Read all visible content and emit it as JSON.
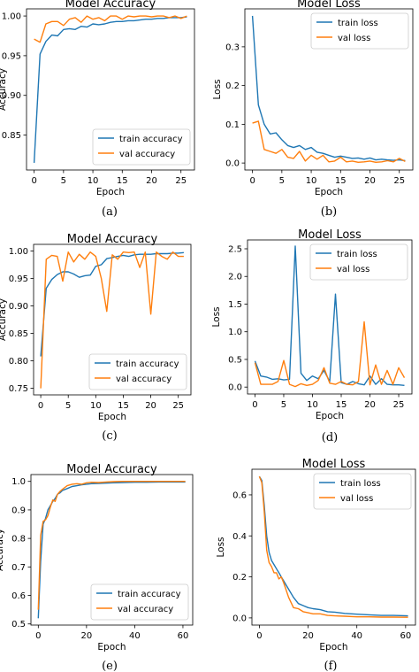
{
  "colors": {
    "train": "#1f77b4",
    "val": "#ff7f0e",
    "axis": "#000000",
    "legend_border": "#cccccc"
  },
  "chart_data": [
    {
      "id": "a",
      "type": "line",
      "caption": "(a)",
      "title": "Model Accuracy",
      "xlabel": "Epoch",
      "ylabel": "Accuracy",
      "xlim": [
        -1.3,
        27.3
      ],
      "ylim": [
        0.806,
        1.009
      ],
      "xticks": [
        0,
        5,
        10,
        15,
        20,
        25
      ],
      "xtick_labels": [
        "0",
        "5",
        "10",
        "15",
        "20",
        "25"
      ],
      "yticks": [
        0.85,
        0.9,
        0.95,
        1.0
      ],
      "ytick_labels": [
        "0.85",
        "0.90",
        "0.95",
        "1.00"
      ],
      "legend": "bottom-right",
      "grid": false,
      "series": [
        {
          "name": "train accuracy",
          "key": "train",
          "x": [
            0,
            1,
            2,
            3,
            4,
            5,
            6,
            7,
            8,
            9,
            10,
            11,
            12,
            13,
            14,
            15,
            16,
            17,
            18,
            19,
            20,
            21,
            22,
            23,
            24,
            25,
            26
          ],
          "y": [
            0.815,
            0.952,
            0.968,
            0.976,
            0.975,
            0.983,
            0.984,
            0.983,
            0.987,
            0.986,
            0.99,
            0.989,
            0.99,
            0.992,
            0.993,
            0.993,
            0.994,
            0.994,
            0.995,
            0.996,
            0.996,
            0.997,
            0.997,
            0.998,
            0.998,
            0.998,
            0.999
          ]
        },
        {
          "name": "val accuracy",
          "key": "val",
          "x": [
            0,
            1,
            2,
            3,
            4,
            5,
            6,
            7,
            8,
            9,
            10,
            11,
            12,
            13,
            14,
            15,
            16,
            17,
            18,
            19,
            20,
            21,
            22,
            23,
            24,
            25,
            26
          ],
          "y": [
            0.971,
            0.967,
            0.99,
            0.993,
            0.993,
            0.988,
            0.996,
            0.998,
            0.992,
            1.0,
            0.996,
            0.998,
            0.994,
            1.0,
            1.0,
            0.996,
            1.0,
            0.999,
            1.0,
            1.0,
            0.999,
            1.0,
            1.0,
            0.998,
            1.0,
            0.997,
            1.0
          ]
        }
      ]
    },
    {
      "id": "b",
      "type": "line",
      "caption": "(b)",
      "title": "Model Loss",
      "xlabel": "Epoch",
      "ylabel": "Loss",
      "xlim": [
        -1.3,
        27.3
      ],
      "ylim": [
        -0.018,
        0.398
      ],
      "xticks": [
        0,
        5,
        10,
        15,
        20,
        25
      ],
      "xtick_labels": [
        "0",
        "5",
        "10",
        "15",
        "20",
        "25"
      ],
      "yticks": [
        0.0,
        0.1,
        0.2,
        0.3
      ],
      "ytick_labels": [
        "0.0",
        "0.1",
        "0.2",
        "0.3"
      ],
      "legend": "top-right",
      "grid": false,
      "series": [
        {
          "name": "train loss",
          "key": "train",
          "x": [
            0,
            1,
            2,
            3,
            4,
            5,
            6,
            7,
            8,
            9,
            10,
            11,
            12,
            13,
            14,
            15,
            16,
            17,
            18,
            19,
            20,
            21,
            22,
            23,
            24,
            25,
            26
          ],
          "y": [
            0.38,
            0.15,
            0.1,
            0.075,
            0.078,
            0.06,
            0.045,
            0.04,
            0.045,
            0.035,
            0.04,
            0.028,
            0.025,
            0.02,
            0.015,
            0.018,
            0.015,
            0.012,
            0.013,
            0.01,
            0.013,
            0.008,
            0.01,
            0.008,
            0.007,
            0.008,
            0.006
          ]
        },
        {
          "name": "val loss",
          "key": "val",
          "x": [
            0,
            1,
            2,
            3,
            4,
            5,
            6,
            7,
            8,
            9,
            10,
            11,
            12,
            13,
            14,
            15,
            16,
            17,
            18,
            19,
            20,
            21,
            22,
            23,
            24,
            25,
            26
          ],
          "y": [
            0.103,
            0.108,
            0.035,
            0.03,
            0.025,
            0.035,
            0.015,
            0.012,
            0.03,
            0.005,
            0.02,
            0.01,
            0.02,
            0.003,
            0.005,
            0.015,
            0.003,
            0.005,
            0.002,
            0.003,
            0.005,
            0.002,
            0.003,
            0.006,
            0.003,
            0.012,
            0.004
          ]
        }
      ]
    },
    {
      "id": "c",
      "type": "line",
      "caption": "(c)",
      "title": "Model Accuracy",
      "xlabel": "Epoch",
      "ylabel": "Accuracy",
      "xlim": [
        -1.3,
        27.3
      ],
      "ylim": [
        0.738,
        1.012
      ],
      "xticks": [
        0,
        5,
        10,
        15,
        20,
        25
      ],
      "xtick_labels": [
        "0",
        "5",
        "10",
        "15",
        "20",
        "25"
      ],
      "yticks": [
        0.75,
        0.8,
        0.85,
        0.9,
        0.95,
        1.0
      ],
      "ytick_labels": [
        "0.75",
        "0.80",
        "0.85",
        "0.90",
        "0.95",
        "1.00"
      ],
      "legend": "bottom-right",
      "grid": false,
      "series": [
        {
          "name": "train accuracy",
          "key": "train",
          "x": [
            0,
            1,
            2,
            3,
            4,
            5,
            6,
            7,
            8,
            9,
            10,
            11,
            12,
            13,
            14,
            15,
            16,
            17,
            18,
            19,
            20,
            21,
            22,
            23,
            24,
            25,
            26
          ],
          "y": [
            0.808,
            0.932,
            0.948,
            0.957,
            0.962,
            0.962,
            0.958,
            0.952,
            0.955,
            0.956,
            0.972,
            0.975,
            0.986,
            0.988,
            0.99,
            0.992,
            0.99,
            0.993,
            0.994,
            0.994,
            0.994,
            0.995,
            0.995,
            0.995,
            0.996,
            0.996,
            0.997
          ]
        },
        {
          "name": "val accuracy",
          "key": "val",
          "x": [
            0,
            1,
            2,
            3,
            4,
            5,
            6,
            7,
            8,
            9,
            10,
            11,
            12,
            13,
            14,
            15,
            16,
            17,
            18,
            19,
            20,
            21,
            22,
            23,
            24,
            25,
            26
          ],
          "y": [
            0.75,
            0.985,
            0.992,
            0.99,
            0.945,
            0.998,
            0.98,
            0.994,
            0.985,
            0.998,
            0.99,
            0.95,
            0.89,
            0.993,
            0.985,
            0.998,
            0.997,
            0.998,
            0.97,
            0.998,
            0.885,
            0.998,
            0.99,
            0.985,
            0.998,
            0.99,
            0.99
          ]
        }
      ]
    },
    {
      "id": "d",
      "type": "line",
      "caption": "(d)",
      "title": "Model Loss",
      "xlabel": "Epoch",
      "ylabel": "Loss",
      "xlim": [
        -1.3,
        27.3
      ],
      "ylim": [
        -0.125,
        2.66
      ],
      "xticks": [
        0,
        5,
        10,
        15,
        20,
        25
      ],
      "xtick_labels": [
        "0",
        "5",
        "10",
        "15",
        "20",
        "25"
      ],
      "yticks": [
        0.0,
        0.5,
        1.0,
        1.5,
        2.0,
        2.5
      ],
      "ytick_labels": [
        "0.0",
        "0.5",
        "1.0",
        "1.5",
        "2.0",
        "2.5"
      ],
      "legend": "top-right",
      "grid": false,
      "series": [
        {
          "name": "train loss",
          "key": "train",
          "x": [
            0,
            1,
            2,
            3,
            4,
            5,
            6,
            7,
            8,
            9,
            10,
            11,
            12,
            13,
            14,
            15,
            16,
            17,
            18,
            19,
            20,
            21,
            22,
            23,
            24,
            25,
            26
          ],
          "y": [
            0.47,
            0.2,
            0.18,
            0.14,
            0.15,
            0.13,
            0.14,
            2.55,
            0.25,
            0.12,
            0.2,
            0.15,
            0.3,
            0.1,
            1.68,
            0.08,
            0.05,
            0.1,
            0.06,
            0.04,
            0.2,
            0.05,
            0.15,
            0.05,
            0.04,
            0.04,
            0.03
          ]
        },
        {
          "name": "val loss",
          "key": "val",
          "x": [
            0,
            1,
            2,
            3,
            4,
            5,
            6,
            7,
            8,
            9,
            10,
            11,
            12,
            13,
            14,
            15,
            16,
            17,
            18,
            19,
            20,
            21,
            22,
            23,
            24,
            25,
            26
          ],
          "y": [
            0.44,
            0.05,
            0.05,
            0.05,
            0.1,
            0.48,
            0.05,
            0.01,
            0.06,
            0.03,
            0.05,
            0.12,
            0.35,
            0.07,
            0.05,
            0.1,
            0.05,
            0.04,
            0.1,
            1.18,
            0.04,
            0.4,
            0.05,
            0.3,
            0.05,
            0.35,
            0.17
          ]
        }
      ]
    },
    {
      "id": "e",
      "type": "line",
      "caption": "(e)",
      "title": "Model Accuracy",
      "xlabel": "Epoch",
      "ylabel": "Accuracy",
      "xlim": [
        -3.05,
        64.05
      ],
      "ylim": [
        0.496,
        1.024
      ],
      "xticks": [
        0,
        20,
        40,
        60
      ],
      "xtick_labels": [
        "0",
        "20",
        "40",
        "60"
      ],
      "yticks": [
        0.5,
        0.6,
        0.7,
        0.8,
        0.9,
        1.0
      ],
      "ytick_labels": [
        "0.5",
        "0.6",
        "0.7",
        "0.8",
        "0.9",
        "1.0"
      ],
      "legend": "bottom-right",
      "grid": false,
      "series": [
        {
          "name": "train accuracy",
          "key": "train",
          "x": [
            0,
            1,
            2,
            3,
            4,
            5,
            6,
            7,
            8,
            9,
            10,
            12,
            14,
            16,
            18,
            20,
            22,
            25,
            28,
            31,
            35,
            40,
            45,
            50,
            55,
            61
          ],
          "y": [
            0.52,
            0.72,
            0.85,
            0.87,
            0.9,
            0.915,
            0.93,
            0.94,
            0.955,
            0.96,
            0.968,
            0.975,
            0.982,
            0.985,
            0.988,
            0.99,
            0.992,
            0.993,
            0.994,
            0.995,
            0.996,
            0.997,
            0.997,
            0.998,
            0.998,
            0.998
          ]
        },
        {
          "name": "val accuracy",
          "key": "val",
          "x": [
            0,
            1,
            2,
            3,
            4,
            5,
            6,
            7,
            8,
            9,
            10,
            12,
            14,
            16,
            18,
            20,
            22,
            25,
            28,
            31,
            35,
            40,
            45,
            50,
            55,
            61
          ],
          "y": [
            0.55,
            0.81,
            0.86,
            0.865,
            0.88,
            0.91,
            0.935,
            0.93,
            0.955,
            0.965,
            0.972,
            0.985,
            0.99,
            0.992,
            0.99,
            0.995,
            0.997,
            0.996,
            0.998,
            0.999,
            1.0,
            1.0,
            1.0,
            1.0,
            1.0,
            1.0
          ]
        }
      ]
    },
    {
      "id": "f",
      "type": "line",
      "caption": "(f)",
      "title": "Model Loss",
      "xlabel": "Epoch",
      "ylabel": "Loss",
      "xlim": [
        -3.05,
        64.05
      ],
      "ylim": [
        -0.035,
        0.725
      ],
      "xticks": [
        0,
        20,
        40,
        60
      ],
      "xtick_labels": [
        "0",
        "20",
        "40",
        "60"
      ],
      "yticks": [
        0.0,
        0.2,
        0.4,
        0.6
      ],
      "ytick_labels": [
        "0.0",
        "0.2",
        "0.4",
        "0.6"
      ],
      "legend": "top-right",
      "grid": false,
      "series": [
        {
          "name": "train loss",
          "key": "train",
          "x": [
            0,
            1,
            2,
            3,
            4,
            5,
            6,
            7,
            8,
            9,
            10,
            12,
            14,
            16,
            18,
            20,
            22,
            25,
            28,
            31,
            35,
            40,
            45,
            50,
            55,
            61
          ],
          "y": [
            0.69,
            0.67,
            0.55,
            0.4,
            0.32,
            0.28,
            0.26,
            0.24,
            0.22,
            0.2,
            0.18,
            0.14,
            0.1,
            0.07,
            0.06,
            0.05,
            0.045,
            0.04,
            0.03,
            0.028,
            0.022,
            0.018,
            0.015,
            0.012,
            0.012,
            0.01
          ]
        },
        {
          "name": "val loss",
          "key": "val",
          "x": [
            0,
            1,
            2,
            3,
            4,
            5,
            6,
            7,
            8,
            9,
            10,
            12,
            14,
            16,
            18,
            20,
            22,
            25,
            28,
            31,
            35,
            40,
            45,
            50,
            55,
            61
          ],
          "y": [
            0.69,
            0.66,
            0.52,
            0.33,
            0.27,
            0.25,
            0.22,
            0.22,
            0.19,
            0.2,
            0.17,
            0.1,
            0.05,
            0.045,
            0.03,
            0.025,
            0.02,
            0.02,
            0.012,
            0.01,
            0.008,
            0.005,
            0.005,
            0.004,
            0.004,
            0.003
          ]
        }
      ]
    }
  ]
}
